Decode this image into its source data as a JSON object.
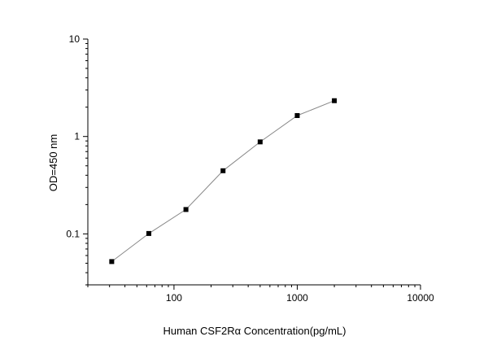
{
  "chart_data": {
    "type": "line",
    "title": "",
    "xlabel": "Human CSF2Rα  Concentration(pg/mL)",
    "ylabel": "OD=450 nm",
    "x_scale": "log",
    "y_scale": "log",
    "xlim": [
      20,
      10000
    ],
    "ylim": [
      0.03,
      10
    ],
    "x_ticks": [
      {
        "value": 100,
        "label": "100"
      },
      {
        "value": 1000,
        "label": "1000"
      },
      {
        "value": 10000,
        "label": "10000"
      }
    ],
    "y_ticks": [
      {
        "value": 0.1,
        "label": "0.1"
      },
      {
        "value": 1,
        "label": "1"
      },
      {
        "value": 10,
        "label": "10"
      }
    ],
    "grid": false,
    "legend": "none",
    "series": [
      {
        "x": [
          31.25,
          62.5,
          125,
          250,
          500,
          1000,
          2000
        ],
        "y": [
          0.052,
          0.101,
          0.178,
          0.445,
          0.88,
          1.64,
          2.33
        ],
        "marker": "square",
        "line_color": "#888888",
        "marker_color": "#000000"
      }
    ]
  }
}
